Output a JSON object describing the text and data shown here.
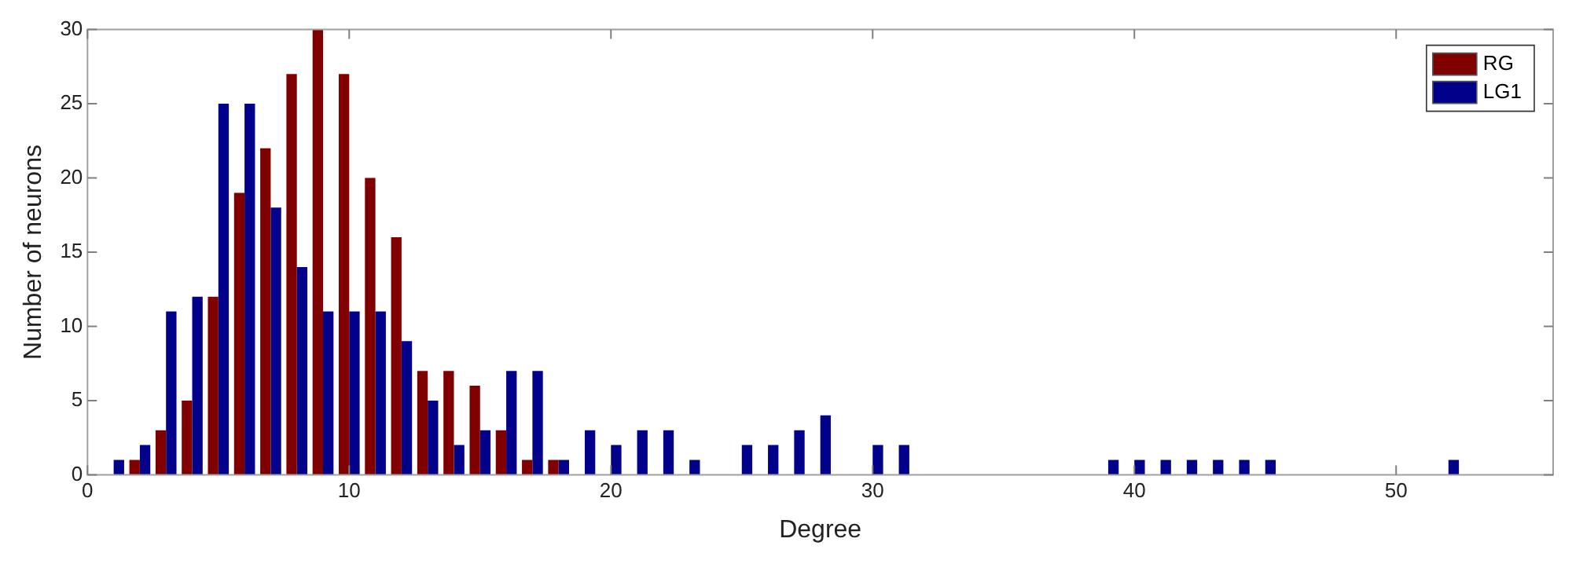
{
  "chart_data": {
    "type": "bar",
    "xlabel": "Degree",
    "ylabel": "Number of neurons",
    "x": [
      1,
      2,
      3,
      4,
      5,
      6,
      7,
      8,
      9,
      10,
      11,
      12,
      13,
      14,
      15,
      16,
      17,
      18,
      19,
      20,
      21,
      22,
      23,
      24,
      25,
      26,
      27,
      28,
      29,
      30,
      31,
      32,
      33,
      34,
      35,
      36,
      37,
      38,
      39,
      40,
      41,
      42,
      43,
      44,
      45,
      46,
      47,
      48,
      49,
      50,
      51,
      52
    ],
    "series": [
      {
        "name": "RG",
        "color": "#800000",
        "values": [
          null,
          1,
          3,
          5,
          12,
          19,
          22,
          27,
          30,
          27,
          20,
          16,
          7,
          7,
          6,
          3,
          1,
          1,
          null,
          null,
          null,
          null,
          null,
          null,
          null,
          null,
          null,
          null,
          null,
          null,
          null,
          null,
          null,
          null,
          null,
          null,
          null,
          null,
          null,
          null,
          null,
          null,
          null,
          null,
          null,
          null,
          null,
          null,
          null,
          null,
          null,
          null
        ]
      },
      {
        "name": "LG1",
        "color": "#00008b",
        "values": [
          1,
          2,
          11,
          12,
          25,
          25,
          18,
          14,
          11,
          11,
          11,
          9,
          5,
          2,
          3,
          7,
          7,
          1,
          3,
          2,
          3,
          3,
          1,
          null,
          2,
          2,
          3,
          4,
          null,
          2,
          2,
          null,
          null,
          null,
          null,
          null,
          null,
          null,
          1,
          1,
          1,
          1,
          1,
          1,
          1,
          null,
          null,
          null,
          null,
          null,
          null,
          1
        ]
      }
    ],
    "xlim": [
      0,
      56
    ],
    "xticks": [
      0,
      10,
      20,
      30,
      40,
      50
    ],
    "ylim": [
      0,
      30
    ],
    "yticks": [
      0,
      5,
      10,
      15,
      20,
      25,
      30
    ],
    "grid": false,
    "legend": "top right"
  }
}
